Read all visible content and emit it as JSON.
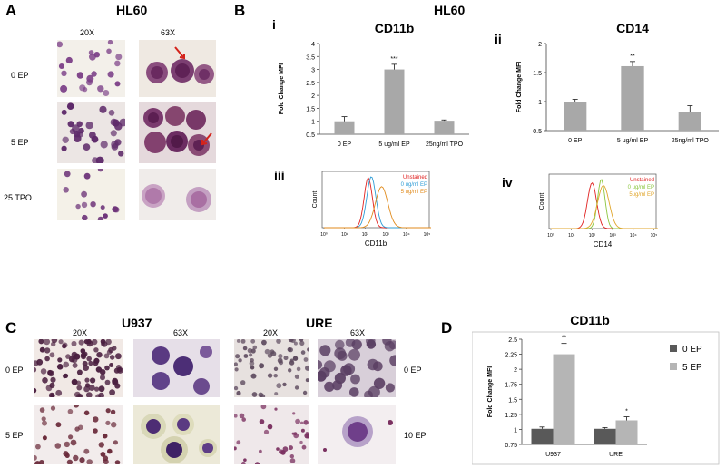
{
  "colors": {
    "bar": "#a8a8a8",
    "bar_dark": "#595959",
    "bar_light": "#b5b5b5",
    "unstained": "#e0201f",
    "ep0": "#2e9cd6",
    "ep5": "#e08a1b",
    "ep0_cd14": "#8cc63f",
    "ep5_cd14": "#e0a52b",
    "arrow": "#d4231b"
  },
  "panelA": {
    "letter": "A",
    "title": "HL60",
    "mag": [
      "20X",
      "63X"
    ],
    "rows": [
      "0 EP",
      "5 EP",
      "25 TPO"
    ]
  },
  "panelB": {
    "letter": "B",
    "title": "HL60",
    "roman": [
      "i",
      "ii",
      "iii",
      "iv"
    ]
  },
  "panelC": {
    "letter": "C",
    "titles": [
      "U937",
      "URE"
    ],
    "mag": [
      "20X",
      "63X",
      "20X",
      "63X"
    ],
    "rows_left": [
      "0 EP",
      "5 EP"
    ],
    "rows_right": [
      "0 EP",
      "10 EP"
    ]
  },
  "panelD": {
    "letter": "D"
  },
  "chart_data": [
    {
      "id": "B-i",
      "type": "bar",
      "title": "CD11b",
      "ylabel": "Fold Change  MFI",
      "categories": [
        "0 EP",
        "5 ug/ml EP",
        "25ng/ml TPO"
      ],
      "values": [
        1.0,
        3.0,
        1.02
      ],
      "errors": [
        0.18,
        0.2,
        0.03
      ],
      "significance": [
        "",
        "***",
        ""
      ],
      "ylim": [
        0.5,
        4
      ],
      "yticks": [
        0.5,
        1,
        1.5,
        2,
        2.5,
        3,
        3.5,
        4
      ],
      "ytick_labels": [
        "0.5",
        "1",
        "1.5",
        "2",
        "2.5",
        "3",
        "3.5",
        "4"
      ]
    },
    {
      "id": "B-ii",
      "type": "bar",
      "title": "CD14",
      "ylabel": "Fold Change MFI",
      "categories": [
        "0 EP",
        "5 ug/ml EP",
        "25ng/ml TPO"
      ],
      "values": [
        1.0,
        1.61,
        0.82
      ],
      "errors": [
        0.04,
        0.08,
        0.11
      ],
      "significance": [
        "",
        "**",
        ""
      ],
      "ylim": [
        0.5,
        2
      ],
      "yticks": [
        0.5,
        1,
        1.5,
        2
      ],
      "ytick_labels": [
        "0.5",
        "1",
        "1.5",
        "2"
      ]
    },
    {
      "id": "B-iii",
      "type": "line",
      "subtype": "flow-histogram",
      "xlabel": "CD11b",
      "ylabel": "Count",
      "xtick_labels": [
        "10⁰",
        "10¹",
        "10²",
        "10³",
        "10⁴",
        "10⁵"
      ],
      "legend": [
        "Unstained",
        "0 ug/ml EP",
        "5 ug/ml EP"
      ],
      "series": [
        {
          "name": "Unstained",
          "peak_decade": 2.15,
          "width": 0.2,
          "height": 0.95
        },
        {
          "name": "0 ug/ml EP",
          "peak_decade": 2.3,
          "width": 0.22,
          "height": 0.97
        },
        {
          "name": "5 ug/ml EP",
          "peak_decade": 2.8,
          "width": 0.3,
          "height": 0.78
        }
      ]
    },
    {
      "id": "B-iv",
      "type": "line",
      "subtype": "flow-histogram",
      "xlabel": "CD14",
      "ylabel": "Count",
      "xtick_labels": [
        "10⁰",
        "10¹",
        "10²",
        "10³",
        "10⁴",
        "10⁵"
      ],
      "legend": [
        "Unstained",
        "0 ug/ml EP",
        "5ug/ml EP"
      ],
      "series": [
        {
          "name": "Unstained",
          "peak_decade": 2.0,
          "width": 0.22,
          "height": 0.9
        },
        {
          "name": "0 ug/ml EP",
          "peak_decade": 2.45,
          "width": 0.18,
          "height": 0.97
        },
        {
          "name": "5ug/ml EP",
          "peak_decade": 2.55,
          "width": 0.28,
          "height": 0.85
        }
      ]
    },
    {
      "id": "D",
      "type": "bar",
      "title": "CD11b",
      "ylabel": "Fold Change MFI",
      "categories": [
        "U937",
        "URE"
      ],
      "series": [
        {
          "name": "0 EP",
          "values": [
            1.01,
            1.01
          ],
          "errors": [
            0.03,
            0.02
          ],
          "significance": [
            "",
            ""
          ]
        },
        {
          "name": "5 EP",
          "values": [
            2.25,
            1.15
          ],
          "errors": [
            0.18,
            0.06
          ],
          "significance": [
            "**",
            "*"
          ]
        }
      ],
      "ylim": [
        0.75,
        2.5
      ],
      "yticks": [
        0.75,
        1,
        1.25,
        1.5,
        1.75,
        2,
        2.25,
        2.5
      ],
      "ytick_labels": [
        "0.75",
        "1",
        "1.25",
        "1.5",
        "1.75",
        "2",
        "2.25",
        "2.5"
      ]
    }
  ]
}
